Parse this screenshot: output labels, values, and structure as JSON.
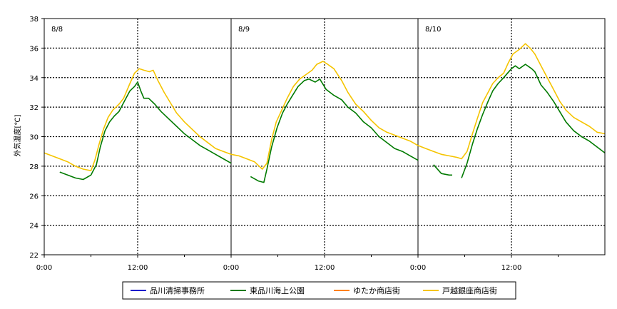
{
  "chart_data": {
    "type": "line",
    "ylabel": "外気温度[℃]",
    "ylim": [
      22,
      38
    ],
    "y_ticks": [
      "22",
      "24",
      "26",
      "28",
      "30",
      "32",
      "34",
      "36",
      "38"
    ],
    "x_range_hours": [
      0,
      72
    ],
    "x_ticks": [
      {
        "hour": 0,
        "label": "0:00"
      },
      {
        "hour": 12,
        "label": "12:00"
      },
      {
        "hour": 24,
        "label": "0:00"
      },
      {
        "hour": 36,
        "label": "12:00"
      },
      {
        "hour": 48,
        "label": "0:00"
      },
      {
        "hour": 60,
        "label": "12:00"
      }
    ],
    "day_labels": [
      {
        "hour": 0,
        "label": "8/8"
      },
      {
        "hour": 24,
        "label": "8/9"
      },
      {
        "hour": 48,
        "label": "8/10"
      }
    ],
    "grid": true,
    "legend_position": "bottom",
    "series": [
      {
        "name": "品川清掃事務所",
        "color": "#0000cc",
        "points": []
      },
      {
        "name": "東品川海上公園",
        "color": "#007a00",
        "points": [
          [
            1.0,
            27.8
          ],
          [
            1.1,
            null
          ],
          [
            2.0,
            27.6
          ],
          [
            3.0,
            27.4
          ],
          [
            4.0,
            27.2
          ],
          [
            5.0,
            27.1
          ],
          [
            6.0,
            27.4
          ],
          [
            6.7,
            28.1
          ],
          [
            7.2,
            29.3
          ],
          [
            7.8,
            30.4
          ],
          [
            8.4,
            31.0
          ],
          [
            9.0,
            31.4
          ],
          [
            9.6,
            31.7
          ],
          [
            10.2,
            32.3
          ],
          [
            11.0,
            33.1
          ],
          [
            11.6,
            33.4
          ],
          [
            12.0,
            33.7
          ],
          [
            12.4,
            33.1
          ],
          [
            12.8,
            32.6
          ],
          [
            13.4,
            32.6
          ],
          [
            14.2,
            32.2
          ],
          [
            15.0,
            31.7
          ],
          [
            16.0,
            31.2
          ],
          [
            17.0,
            30.7
          ],
          [
            18.0,
            30.2
          ],
          [
            19.0,
            29.8
          ],
          [
            20.0,
            29.4
          ],
          [
            21.0,
            29.1
          ],
          [
            22.0,
            28.8
          ],
          [
            23.0,
            28.5
          ],
          [
            24.0,
            28.2
          ],
          [
            24.3,
            null
          ],
          [
            25.6,
            27.6
          ],
          [
            25.9,
            null
          ],
          [
            26.5,
            27.3
          ],
          [
            27.5,
            27.0
          ],
          [
            28.2,
            26.9
          ],
          [
            28.6,
            27.8
          ],
          [
            29.2,
            29.3
          ],
          [
            29.9,
            30.6
          ],
          [
            30.6,
            31.6
          ],
          [
            31.2,
            32.2
          ],
          [
            31.9,
            32.8
          ],
          [
            32.6,
            33.4
          ],
          [
            33.4,
            33.8
          ],
          [
            34.0,
            33.9
          ],
          [
            34.8,
            33.7
          ],
          [
            35.4,
            33.9
          ],
          [
            36.2,
            33.2
          ],
          [
            37.2,
            32.8
          ],
          [
            38.2,
            32.5
          ],
          [
            39.0,
            32.0
          ],
          [
            40.0,
            31.6
          ],
          [
            41.0,
            31.0
          ],
          [
            42.0,
            30.6
          ],
          [
            43.0,
            30.0
          ],
          [
            44.0,
            29.6
          ],
          [
            45.0,
            29.2
          ],
          [
            46.0,
            29.0
          ],
          [
            47.0,
            28.7
          ],
          [
            48.0,
            28.4
          ],
          [
            48.4,
            null
          ],
          [
            50.0,
            28.1
          ],
          [
            51.0,
            27.5
          ],
          [
            52.0,
            27.4
          ],
          [
            52.4,
            27.4
          ],
          [
            52.6,
            null
          ],
          [
            53.6,
            27.2
          ],
          [
            54.3,
            28.2
          ],
          [
            55.0,
            29.5
          ],
          [
            55.6,
            30.5
          ],
          [
            56.3,
            31.5
          ],
          [
            57.0,
            32.4
          ],
          [
            57.6,
            33.1
          ],
          [
            58.3,
            33.6
          ],
          [
            59.0,
            34.0
          ],
          [
            60.0,
            34.6
          ],
          [
            60.5,
            34.8
          ],
          [
            61.0,
            34.6
          ],
          [
            61.8,
            34.9
          ],
          [
            62.6,
            34.6
          ],
          [
            63.0,
            34.4
          ],
          [
            63.8,
            33.5
          ],
          [
            64.6,
            33.0
          ],
          [
            65.4,
            32.4
          ],
          [
            66.2,
            31.7
          ],
          [
            67.0,
            31.0
          ],
          [
            68.0,
            30.4
          ],
          [
            69.0,
            30.0
          ],
          [
            70.0,
            29.7
          ],
          [
            71.0,
            29.3
          ],
          [
            72.0,
            28.9
          ]
        ]
      },
      {
        "name": "ゆたか商店街",
        "color": "#ff8000",
        "points": []
      },
      {
        "name": "戸越銀座商店街",
        "color": "#f5c400",
        "points": [
          [
            0.0,
            28.9
          ],
          [
            1.0,
            28.7
          ],
          [
            2.0,
            28.5
          ],
          [
            3.0,
            28.3
          ],
          [
            4.0,
            28.0
          ],
          [
            5.0,
            27.8
          ],
          [
            6.0,
            27.7
          ],
          [
            6.5,
            28.4
          ],
          [
            7.0,
            29.4
          ],
          [
            7.6,
            30.5
          ],
          [
            8.2,
            31.3
          ],
          [
            8.8,
            31.8
          ],
          [
            9.6,
            32.2
          ],
          [
            10.2,
            32.6
          ],
          [
            11.0,
            33.6
          ],
          [
            11.6,
            34.3
          ],
          [
            12.2,
            34.6
          ],
          [
            12.8,
            34.5
          ],
          [
            13.5,
            34.4
          ],
          [
            14.0,
            34.5
          ],
          [
            14.6,
            33.8
          ],
          [
            15.4,
            33.0
          ],
          [
            16.2,
            32.3
          ],
          [
            17.0,
            31.6
          ],
          [
            18.0,
            31.0
          ],
          [
            19.0,
            30.5
          ],
          [
            20.0,
            30.0
          ],
          [
            21.0,
            29.6
          ],
          [
            22.0,
            29.2
          ],
          [
            23.0,
            29.0
          ],
          [
            24.0,
            28.8
          ],
          [
            25.0,
            28.7
          ],
          [
            26.0,
            28.5
          ],
          [
            27.0,
            28.3
          ],
          [
            28.0,
            27.8
          ],
          [
            28.6,
            28.2
          ],
          [
            29.2,
            29.8
          ],
          [
            29.8,
            31.0
          ],
          [
            30.5,
            31.8
          ],
          [
            31.2,
            32.6
          ],
          [
            32.0,
            33.4
          ],
          [
            32.8,
            33.9
          ],
          [
            33.6,
            34.2
          ],
          [
            34.4,
            34.5
          ],
          [
            35.0,
            34.9
          ],
          [
            35.8,
            35.1
          ],
          [
            36.4,
            34.9
          ],
          [
            37.2,
            34.6
          ],
          [
            38.2,
            33.8
          ],
          [
            39.0,
            33.0
          ],
          [
            40.0,
            32.2
          ],
          [
            41.0,
            31.7
          ],
          [
            42.0,
            31.1
          ],
          [
            43.0,
            30.6
          ],
          [
            44.0,
            30.3
          ],
          [
            45.0,
            30.1
          ],
          [
            46.0,
            29.9
          ],
          [
            47.0,
            29.7
          ],
          [
            48.0,
            29.4
          ],
          [
            49.0,
            29.2
          ],
          [
            50.0,
            29.0
          ],
          [
            51.0,
            28.8
          ],
          [
            52.0,
            28.7
          ],
          [
            53.0,
            28.6
          ],
          [
            53.6,
            28.5
          ],
          [
            54.3,
            29.0
          ],
          [
            55.0,
            30.2
          ],
          [
            55.6,
            31.2
          ],
          [
            56.3,
            32.3
          ],
          [
            57.0,
            33.0
          ],
          [
            57.6,
            33.6
          ],
          [
            58.3,
            34.0
          ],
          [
            59.0,
            34.3
          ],
          [
            59.6,
            35.0
          ],
          [
            60.2,
            35.6
          ],
          [
            61.0,
            35.9
          ],
          [
            61.8,
            36.3
          ],
          [
            62.4,
            36.0
          ],
          [
            63.0,
            35.6
          ],
          [
            63.8,
            34.8
          ],
          [
            64.6,
            34.0
          ],
          [
            65.4,
            33.2
          ],
          [
            66.2,
            32.4
          ],
          [
            67.0,
            31.8
          ],
          [
            68.0,
            31.3
          ],
          [
            69.0,
            31.0
          ],
          [
            70.0,
            30.7
          ],
          [
            71.0,
            30.3
          ],
          [
            72.0,
            30.2
          ]
        ]
      }
    ]
  }
}
